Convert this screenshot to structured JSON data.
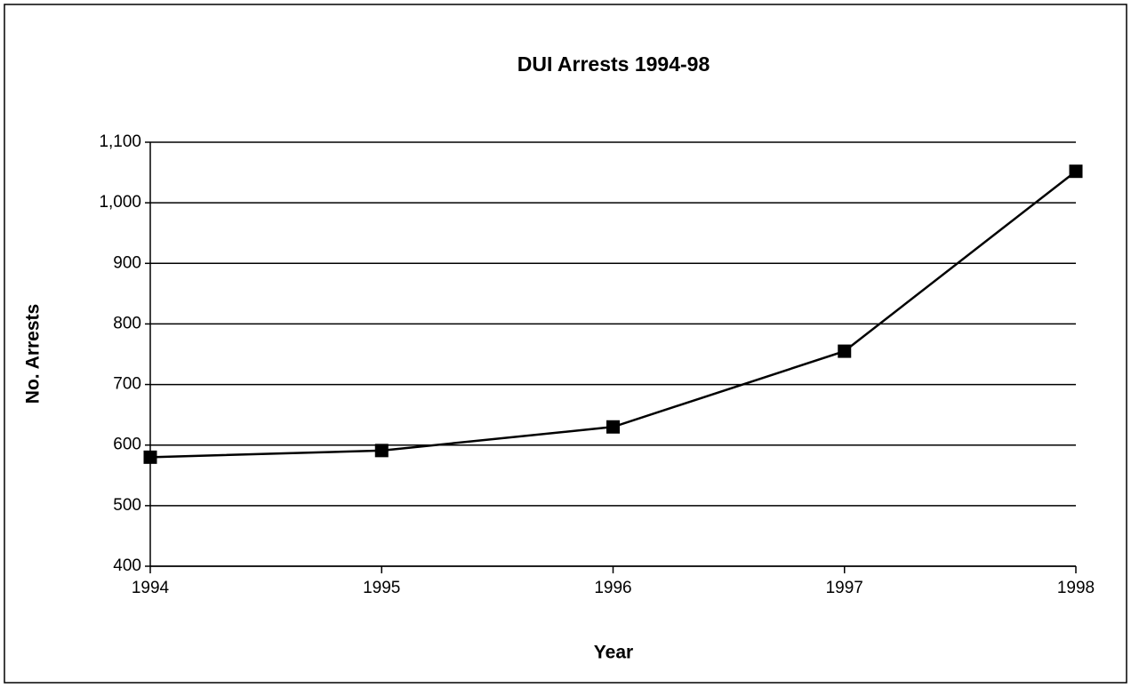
{
  "chart_data": {
    "type": "line",
    "title": "DUI  Arrests  1994-98",
    "x_label": "Year",
    "y_label": "No.  Arrests",
    "x": [
      1994,
      1995,
      1996,
      1997,
      1998
    ],
    "values": [
      580,
      591,
      630,
      755,
      1052
    ],
    "color": "#000000",
    "xlim": [
      1994,
      1998
    ],
    "xticks": [
      1994,
      1995,
      1996,
      1997,
      1998
    ],
    "ylim": [
      400,
      1100
    ],
    "yticks": [
      400,
      500,
      600,
      700,
      800,
      900,
      {
        "value": 1000,
        "label": "1,000"
      },
      {
        "value": 1100,
        "label": "1,100"
      }
    ],
    "grid": true,
    "marker": "square"
  }
}
